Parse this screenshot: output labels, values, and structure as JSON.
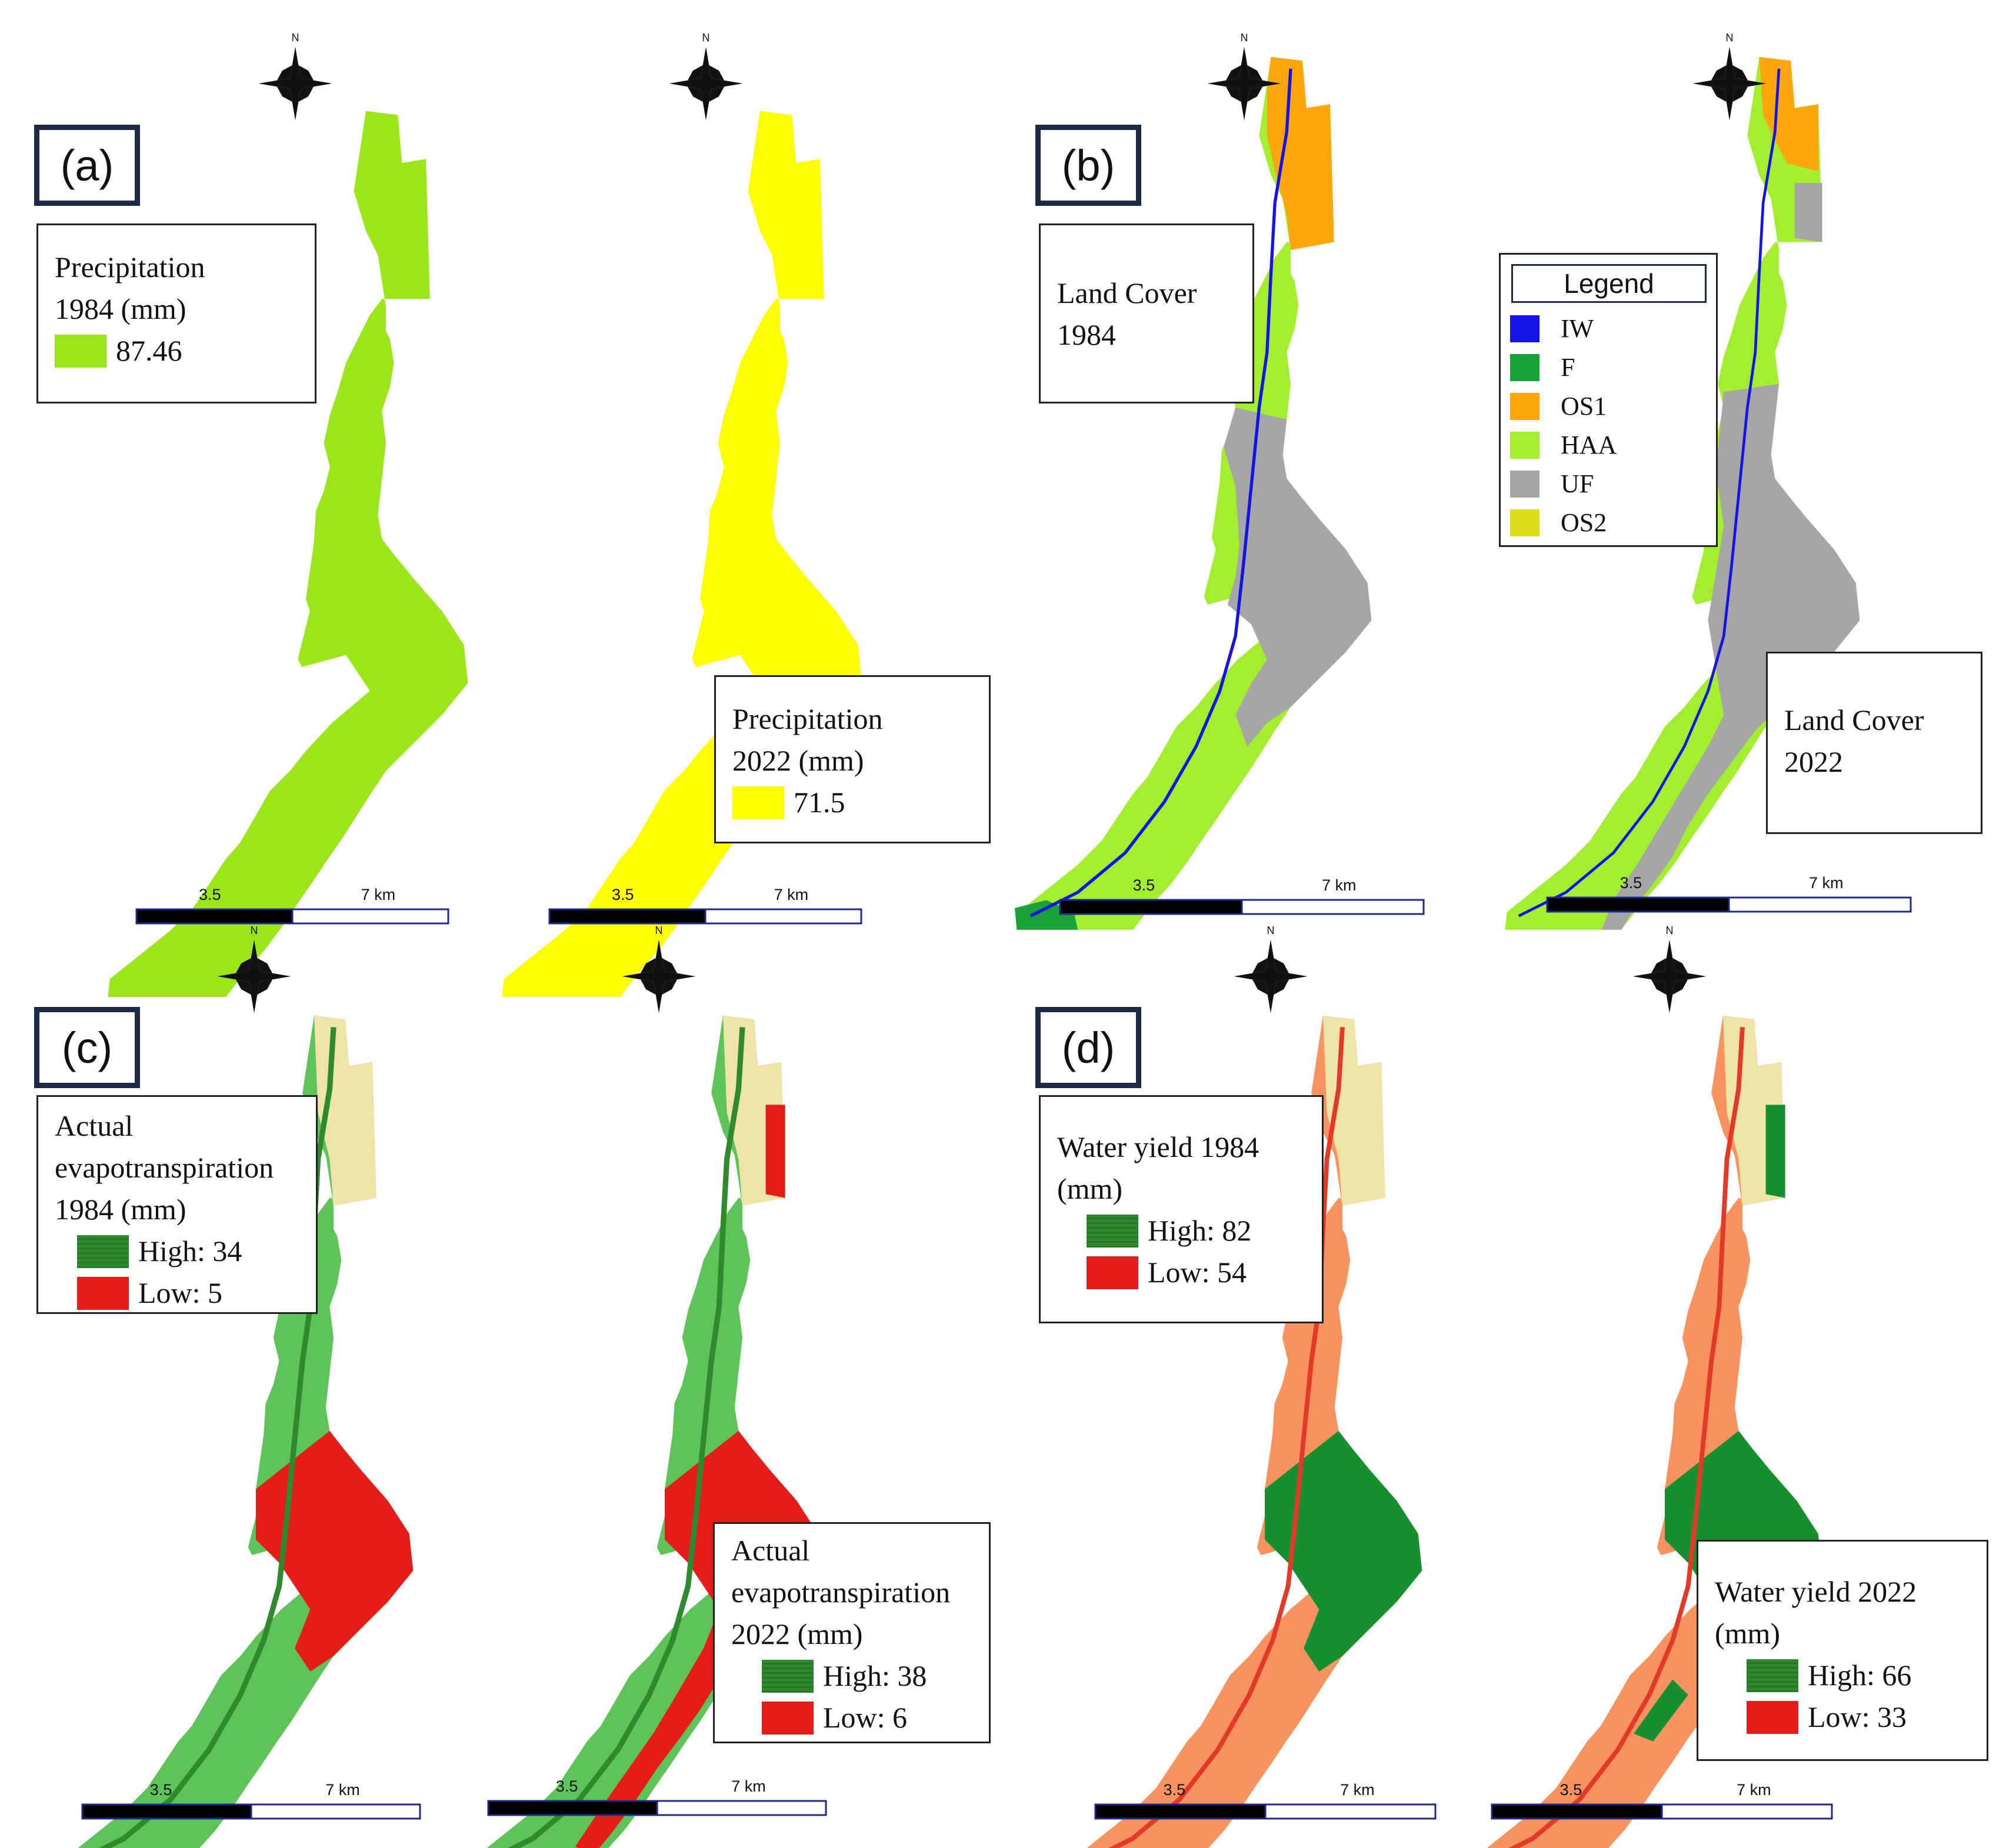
{
  "panels": {
    "a": {
      "label": "(a)",
      "left": {
        "legend_line1": "Precipitation",
        "legend_line2": "1984 (mm)",
        "value": "87.46",
        "fill": "#9be61a"
      },
      "right": {
        "legend_line1": "Precipitation",
        "legend_line2": "2022 (mm)",
        "value": "71.5",
        "fill": "#ffff00"
      }
    },
    "b": {
      "label": "(b)",
      "left_title_line1": "Land Cover",
      "left_title_line2": "1984",
      "right_title_line1": "Land Cover",
      "right_title_line2": "2022",
      "legend_title": "Legend",
      "classes": [
        {
          "code": "IW",
          "color": "#1414e6"
        },
        {
          "code": "F",
          "color": "#19a23a"
        },
        {
          "code": "OS1",
          "color": "#ffa60d"
        },
        {
          "code": "HAA",
          "color": "#a3ee2e"
        },
        {
          "code": "UF",
          "color": "#a6a6a6"
        },
        {
          "code": "OS2",
          "color": "#dede1a"
        }
      ]
    },
    "c": {
      "label": "(c)",
      "left": {
        "line1": "Actual",
        "line2": "evapotranspiration",
        "line3": "1984 (mm)",
        "high": "High:  34",
        "low": "Low: 5"
      },
      "right": {
        "line1": "Actual",
        "line2": "evapotranspiration",
        "line3": "2022 (mm)",
        "high": "High:  38",
        "low": "Low:  6"
      }
    },
    "d": {
      "label": "(d)",
      "left": {
        "line1": "Water yield  1984",
        "line2": "(mm)",
        "high": "High:  82",
        "low": "Low:  54"
      },
      "right": {
        "line1": "Water yield  2022",
        "line2": "(mm)",
        "high": "High:  66",
        "low": "Low:  33"
      }
    }
  },
  "scalebar": {
    "mid": "3.5",
    "end": "7 km"
  },
  "north_label": "N",
  "colors": {
    "aet_high": "#5ec45a",
    "aet_low": "#e41d1a",
    "wy_base": "#f7935e",
    "wy_high": "#16902e",
    "river_red": "#e23a28",
    "inactive": "#f0e3a8"
  }
}
